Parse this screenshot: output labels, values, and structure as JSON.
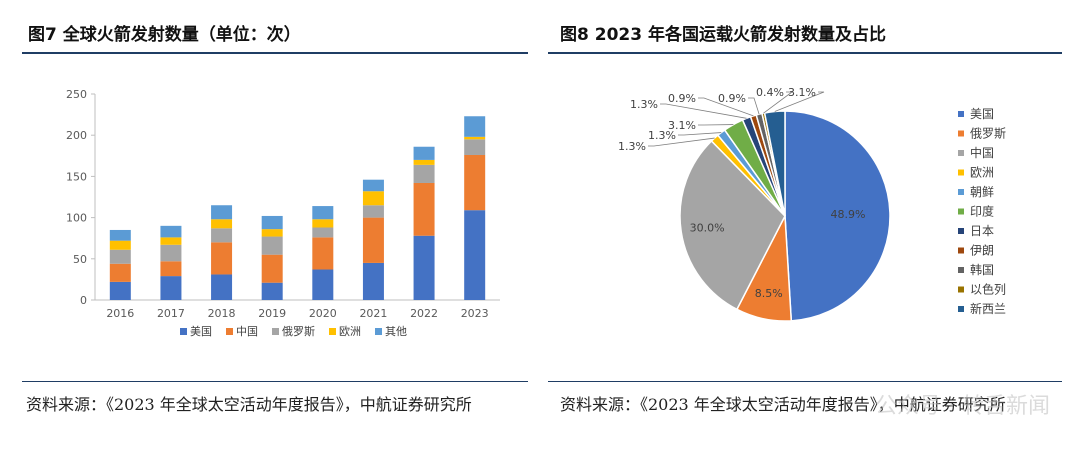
{
  "figures": [
    {
      "title": "图7  全球火箭发射数量（单位：次）",
      "source": "资料来源：《2023 年全球太空活动年度报告》，中航证券研究所"
    },
    {
      "title": "图8  2023 年各国运载火箭发射数量及占比",
      "source": "资料来源：《2023 年全球太空活动年度报告》，中航证券研究所"
    }
  ],
  "watermark": "公众号 · 转舌新闻",
  "chart_data": [
    {
      "type": "bar",
      "stacked": true,
      "categories": [
        "2016",
        "2017",
        "2018",
        "2019",
        "2020",
        "2021",
        "2022",
        "2023"
      ],
      "ylim": [
        0,
        250
      ],
      "yticks": [
        0,
        50,
        100,
        150,
        200,
        250
      ],
      "grid": false,
      "legend_position": "bottom",
      "series": [
        {
          "name": "美国",
          "color": "#4472c4",
          "values": [
            22,
            29,
            31,
            21,
            37,
            45,
            78,
            109
          ]
        },
        {
          "name": "中国",
          "color": "#ed7d31",
          "values": [
            22,
            18,
            39,
            34,
            39,
            55,
            64,
            67
          ]
        },
        {
          "name": "俄罗斯",
          "color": "#a5a5a5",
          "values": [
            17,
            20,
            17,
            22,
            12,
            15,
            22,
            19
          ]
        },
        {
          "name": "欧洲",
          "color": "#ffc000",
          "values": [
            11,
            9,
            11,
            9,
            10,
            17,
            6,
            3
          ]
        },
        {
          "name": "其他",
          "color": "#5b9bd5",
          "values": [
            13,
            14,
            17,
            16,
            16,
            14,
            16,
            25
          ]
        }
      ]
    },
    {
      "type": "pie",
      "legend_position": "right",
      "slices": [
        {
          "name": "美国",
          "value": 48.9,
          "label": "48.9%",
          "color": "#4472c4"
        },
        {
          "name": "俄罗斯",
          "value": 8.5,
          "label": "8.5%",
          "color": "#ed7d31"
        },
        {
          "name": "中国",
          "value": 30.0,
          "label": "30.0%",
          "color": "#a5a5a5"
        },
        {
          "name": "欧洲",
          "value": 1.3,
          "label": "1.3%",
          "color": "#ffc000"
        },
        {
          "name": "朝鲜",
          "value": 1.3,
          "label": "1.3%",
          "color": "#5b9bd5"
        },
        {
          "name": "印度",
          "value": 3.1,
          "label": "3.1%",
          "color": "#70ad47"
        },
        {
          "name": "日本",
          "value": 1.3,
          "label": "1.3%",
          "color": "#264478"
        },
        {
          "name": "伊朗",
          "value": 0.9,
          "label": "0.9%",
          "color": "#9e480e"
        },
        {
          "name": "韩国",
          "value": 0.9,
          "label": "0.9%",
          "color": "#636363"
        },
        {
          "name": "以色列",
          "value": 0.4,
          "label": "0.4%",
          "color": "#997300"
        },
        {
          "name": "新西兰",
          "value": 3.1,
          "label": "3.1%",
          "color": "#255e91"
        }
      ]
    }
  ]
}
